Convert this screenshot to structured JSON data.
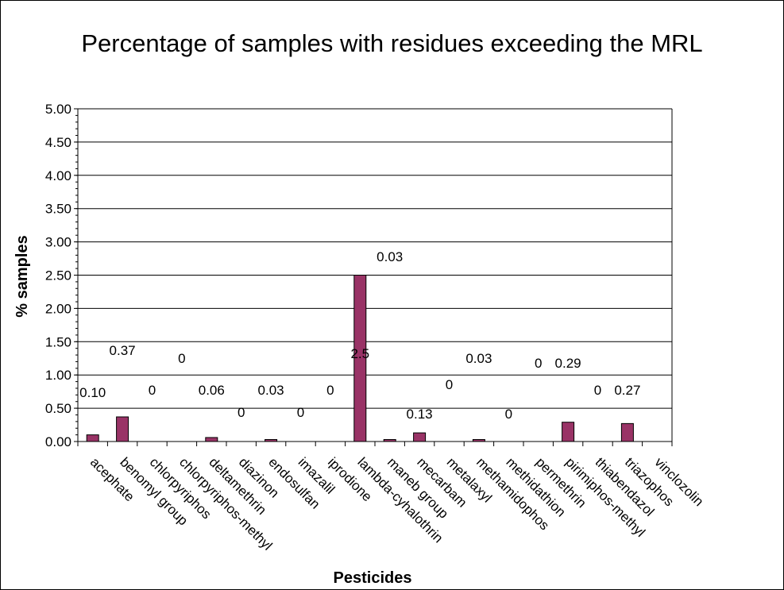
{
  "chart_data": {
    "type": "bar",
    "title": "Percentage of samples with residues exceeding the MRL",
    "xlabel": "Pesticides",
    "ylabel": "% samples",
    "ylim": [
      0,
      5
    ],
    "yticks": [
      "0.00",
      "0.50",
      "1.00",
      "1.50",
      "2.00",
      "2.50",
      "3.00",
      "3.50",
      "4.00",
      "4.50",
      "5.00"
    ],
    "grid": true,
    "legend": "none",
    "bar_color": "#993366",
    "categories": [
      "acephate",
      "benomyl group",
      "chlorpyriphos",
      "chlorpyriphos-methyl",
      "deltamethrin",
      "diazinon",
      "endosulfan",
      "imazalil",
      "iprodione",
      "lambda-cyhalothrin",
      "maneb group",
      "mecarbam",
      "metalaxyl",
      "methamidophos",
      "methidathion",
      "permethrin",
      "pirimiphos-methyl",
      "thiabendazol",
      "triazophos",
      "vinclozolin"
    ],
    "values": [
      0.1,
      0.37,
      0,
      0,
      0.06,
      0,
      0.03,
      0,
      0,
      2.5,
      0.03,
      0.13,
      0,
      0.03,
      0,
      0,
      0.29,
      0,
      0.27,
      0
    ],
    "data_labels": [
      "0.10",
      "0.37",
      "0",
      "0",
      "0.06",
      "0",
      "0.03",
      "0",
      "0",
      "2.5",
      "0.03",
      "0.13",
      "0",
      "0.03",
      "0",
      "0",
      "0.29",
      "0",
      "0.27",
      ""
    ]
  }
}
